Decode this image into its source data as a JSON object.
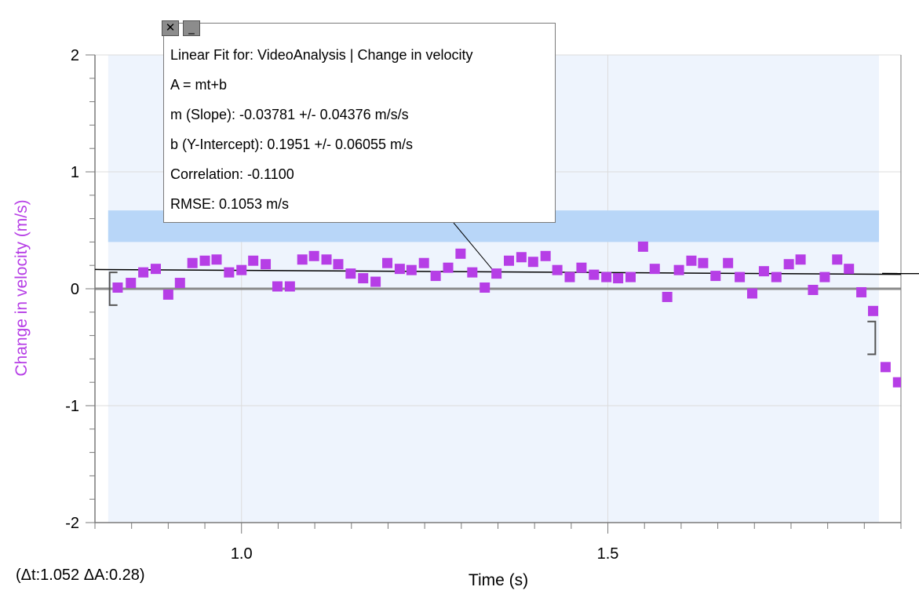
{
  "chart_data": {
    "type": "scatter",
    "xlabel": "Time (s)",
    "ylabel": "Change in velocity (m/s)",
    "xlim": [
      0.8,
      1.9
    ],
    "ylim": [
      -2,
      2
    ],
    "x_ticks": [
      {
        "value": 1.0,
        "label": "1.0"
      },
      {
        "value": 1.5,
        "label": "1.5"
      }
    ],
    "y_ticks": [
      {
        "value": 2,
        "label": "2"
      },
      {
        "value": 1,
        "label": "1"
      },
      {
        "value": 0,
        "label": "0"
      },
      {
        "value": -1,
        "label": "-1"
      },
      {
        "value": -2,
        "label": "-2"
      }
    ],
    "series": [
      {
        "color": "#b63ee6",
        "marker": "square",
        "points": [
          [
            0.831,
            0.01
          ],
          [
            0.849,
            0.05
          ],
          [
            0.866,
            0.14
          ],
          [
            0.883,
            0.17
          ],
          [
            0.9,
            -0.05
          ],
          [
            0.916,
            0.05
          ],
          [
            0.933,
            0.22
          ],
          [
            0.95,
            0.24
          ],
          [
            0.966,
            0.25
          ],
          [
            0.983,
            0.14
          ],
          [
            1.0,
            0.16
          ],
          [
            1.016,
            0.24
          ],
          [
            1.033,
            0.21
          ],
          [
            1.049,
            0.02
          ],
          [
            1.066,
            0.02
          ],
          [
            1.083,
            0.25
          ],
          [
            1.099,
            0.28
          ],
          [
            1.116,
            0.25
          ],
          [
            1.132,
            0.21
          ],
          [
            1.149,
            0.13
          ],
          [
            1.166,
            0.09
          ],
          [
            1.183,
            0.06
          ],
          [
            1.199,
            0.22
          ],
          [
            1.216,
            0.17
          ],
          [
            1.232,
            0.16
          ],
          [
            1.249,
            0.22
          ],
          [
            1.265,
            0.11
          ],
          [
            1.282,
            0.18
          ],
          [
            1.299,
            0.3
          ],
          [
            1.315,
            0.14
          ],
          [
            1.332,
            0.01
          ],
          [
            1.348,
            0.13
          ],
          [
            1.365,
            0.24
          ],
          [
            1.382,
            0.27
          ],
          [
            1.398,
            0.23
          ],
          [
            1.415,
            0.28
          ],
          [
            1.431,
            0.16
          ],
          [
            1.448,
            0.1
          ],
          [
            1.464,
            0.18
          ],
          [
            1.481,
            0.12
          ],
          [
            1.498,
            0.1
          ],
          [
            1.514,
            0.09
          ],
          [
            1.531,
            0.1
          ],
          [
            1.548,
            0.36
          ],
          [
            1.564,
            0.17
          ],
          [
            1.581,
            -0.07
          ],
          [
            1.597,
            0.16
          ],
          [
            1.614,
            0.24
          ],
          [
            1.63,
            0.22
          ],
          [
            1.647,
            0.11
          ],
          [
            1.664,
            0.22
          ],
          [
            1.68,
            0.1
          ],
          [
            1.697,
            -0.04
          ],
          [
            1.713,
            0.15
          ],
          [
            1.73,
            0.1
          ],
          [
            1.747,
            0.21
          ],
          [
            1.763,
            0.25
          ],
          [
            1.78,
            -0.01
          ],
          [
            1.796,
            0.1
          ],
          [
            1.813,
            0.25
          ],
          [
            1.829,
            0.17
          ],
          [
            1.846,
            -0.03
          ],
          [
            1.862,
            -0.19
          ],
          [
            1.879,
            -0.67
          ],
          [
            1.896,
            -0.8
          ]
        ]
      }
    ],
    "linear_fit": {
      "m": -0.03781,
      "b": 0.1951,
      "x_range": [
        0.8,
        1.9
      ]
    },
    "selection_x_range": [
      0.818,
      1.87
    ],
    "highlight_y_band": [
      0.4,
      0.67
    ],
    "zero_line": 0,
    "bracket_left": {
      "x": 0.82,
      "y_top": 0.14,
      "y_bottom": -0.14
    },
    "bracket_right": {
      "x": 1.865,
      "y_top": -0.28,
      "y_bottom": -0.56
    },
    "grid": true
  },
  "fit_box": {
    "lines": [
      "Linear Fit for: VideoAnalysis | Change in velocity",
      "A = mt+b",
      "m (Slope): -0.03781 +/- 0.04376 m/s/s",
      "b (Y-Intercept): 0.1951 +/- 0.06055 m/s",
      "Correlation: -0.1100",
      "RMSE: 0.1053 m/s"
    ],
    "close_glyph": "✕",
    "minimize_glyph": "_"
  },
  "delta_readout": "(Δt:1.052 ΔA:0.28)",
  "colors": {
    "selection": "#eef4fd",
    "band": "#b8d6f8",
    "points": "#b63ee6",
    "grid": "#dcdcdc",
    "axis": "#7a7a7a",
    "fit_line": "#000000"
  }
}
